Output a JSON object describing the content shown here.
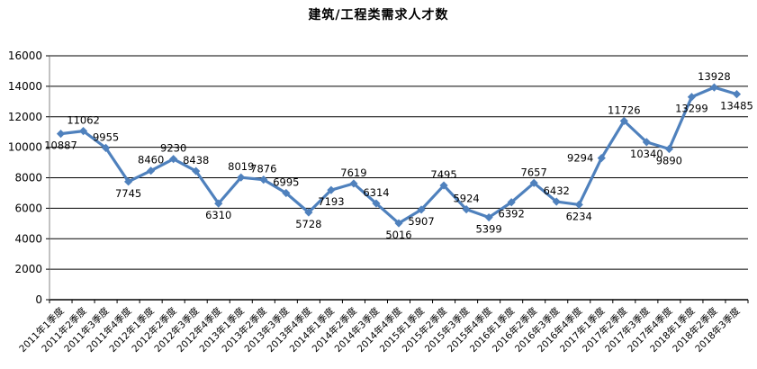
{
  "chart_data": {
    "type": "line",
    "title": "建筑/工程类需求人才数",
    "xlabel": "",
    "ylabel": "",
    "legend": "none",
    "grid": true,
    "ylim": [
      0,
      16000
    ],
    "yticks": [
      0,
      2000,
      4000,
      6000,
      8000,
      10000,
      12000,
      14000,
      16000
    ],
    "line_color": "#4F81BD",
    "grid_color": "#000000",
    "axis_color": "#000000",
    "y_axis_line_color": "#848484",
    "marker": "diamond",
    "categories": [
      "2011年1季度",
      "2011年2季度",
      "2011年3季度",
      "2011年4季度",
      "2012年1季度",
      "2012年2季度",
      "2012年3季度",
      "2012年4季度",
      "2013年1季度",
      "2013年2季度",
      "2013年3季度",
      "2013年4季度",
      "2014年1季度",
      "2014年2季度",
      "2014年3季度",
      "2014年4季度",
      "2015年1季度",
      "2015年2季度",
      "2015年3季度",
      "2015年4季度",
      "2016年1季度",
      "2016年2季度",
      "2016年3季度",
      "2016年4季度",
      "2017年1季度",
      "2017年2季度",
      "2017年3季度",
      "2017年4季度",
      "2018年1季度",
      "2018年2季度",
      "2018年3季度"
    ],
    "values": [
      10887,
      11062,
      9955,
      7745,
      8460,
      9230,
      8438,
      6310,
      8019,
      7876,
      6995,
      5728,
      7193,
      7619,
      6314,
      5016,
      5907,
      7495,
      5924,
      5399,
      6392,
      7657,
      6432,
      6234,
      9294,
      11726,
      10340,
      9890,
      13299,
      13928,
      13485
    ],
    "label_positions": [
      "below",
      "above",
      "above",
      "below",
      "above",
      "above",
      "above",
      "below",
      "above",
      "above",
      "above",
      "below",
      "below",
      "above",
      "above",
      "below",
      "below",
      "above",
      "above",
      "below",
      "below",
      "above",
      "above",
      "below",
      "left",
      "above",
      "below",
      "below",
      "below",
      "above",
      "below"
    ]
  }
}
